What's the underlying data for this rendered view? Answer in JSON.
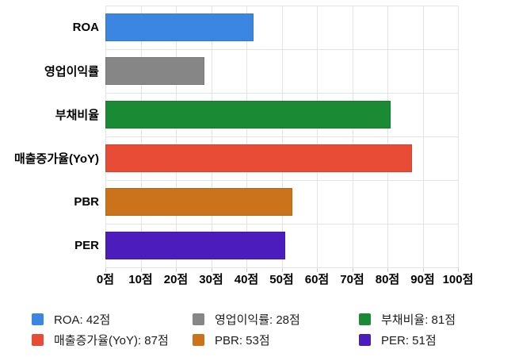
{
  "chart_data": {
    "type": "bar",
    "orientation": "horizontal",
    "title": "",
    "categories": [
      "ROA",
      "영업이익률",
      "부채비율",
      "매출증가율(YoY)",
      "PBR",
      "PER"
    ],
    "values": [
      42,
      28,
      81,
      87,
      53,
      51
    ],
    "unit": "점",
    "colors": [
      "#3b86e0",
      "#868686",
      "#1a8b34",
      "#e94c36",
      "#cb731a",
      "#4c1cbd"
    ],
    "xlim": [
      0,
      100
    ],
    "x_ticks": [
      "0점",
      "10점",
      "20점",
      "30점",
      "40점",
      "50점",
      "60점",
      "70점",
      "80점",
      "90점",
      "100점"
    ],
    "grid": true,
    "legend": {
      "position": "bottom",
      "columns": 3,
      "items": [
        {
          "label": "ROA: 42점",
          "color": "#3b86e0"
        },
        {
          "label": "영업이익률: 28점",
          "color": "#868686"
        },
        {
          "label": "부채비율: 81점",
          "color": "#1a8b34"
        },
        {
          "label": "매출증가율(YoY): 87점",
          "color": "#e94c36"
        },
        {
          "label": "PBR: 53점",
          "color": "#cb731a"
        },
        {
          "label": "PER: 51점",
          "color": "#4c1cbd"
        }
      ]
    }
  }
}
